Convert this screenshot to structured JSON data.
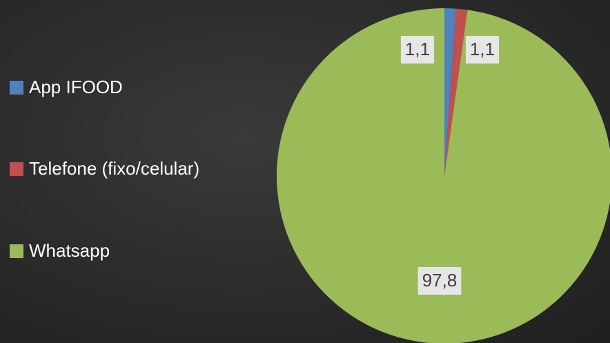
{
  "chart_data": {
    "type": "pie",
    "categories": [
      "App IFOOD",
      "Telefone (fixo/celular)",
      "Whatsapp"
    ],
    "values": [
      1.1,
      1.1,
      97.8
    ],
    "value_labels": [
      "1,1",
      "1,1",
      "97,8"
    ],
    "colors": [
      "#4f81bd",
      "#c0504d",
      "#9bbb59"
    ],
    "legend": "left"
  }
}
